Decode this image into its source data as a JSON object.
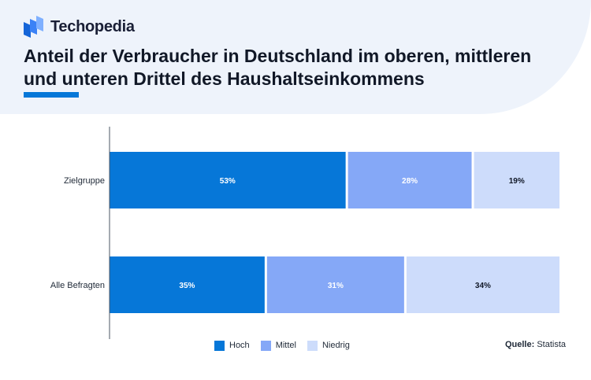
{
  "brand": {
    "name": "Techopedia",
    "logo_icon": "techopedia-logo-icon"
  },
  "title": "Anteil der Verbraucher in Deutschland im oberen, mittleren und unteren Drittel des Haushaltseinkommens",
  "source": {
    "label": "Quelle:",
    "value": "Statista"
  },
  "colors": {
    "accent": "#0677d8",
    "hoch": "#0677d8",
    "mittel": "#85a8f7",
    "niedrig": "#cddcfb",
    "header_bg": "#eef3fb"
  },
  "chart_data": {
    "type": "bar",
    "orientation": "horizontal",
    "stacked": true,
    "value_unit": "%",
    "categories": [
      "Zielgruppe",
      "Alle Befragten"
    ],
    "series": [
      {
        "name": "Hoch",
        "values": [
          53,
          35
        ],
        "color": "#0677d8",
        "label_color": "#ffffff"
      },
      {
        "name": "Mittel",
        "values": [
          28,
          31
        ],
        "color": "#85a8f7",
        "label_color": "#ffffff"
      },
      {
        "name": "Niedrig",
        "values": [
          19,
          34
        ],
        "color": "#cddcfb",
        "label_color": "#111827"
      }
    ],
    "xlim": [
      0,
      100
    ],
    "grid": false,
    "legend_position": "bottom"
  }
}
